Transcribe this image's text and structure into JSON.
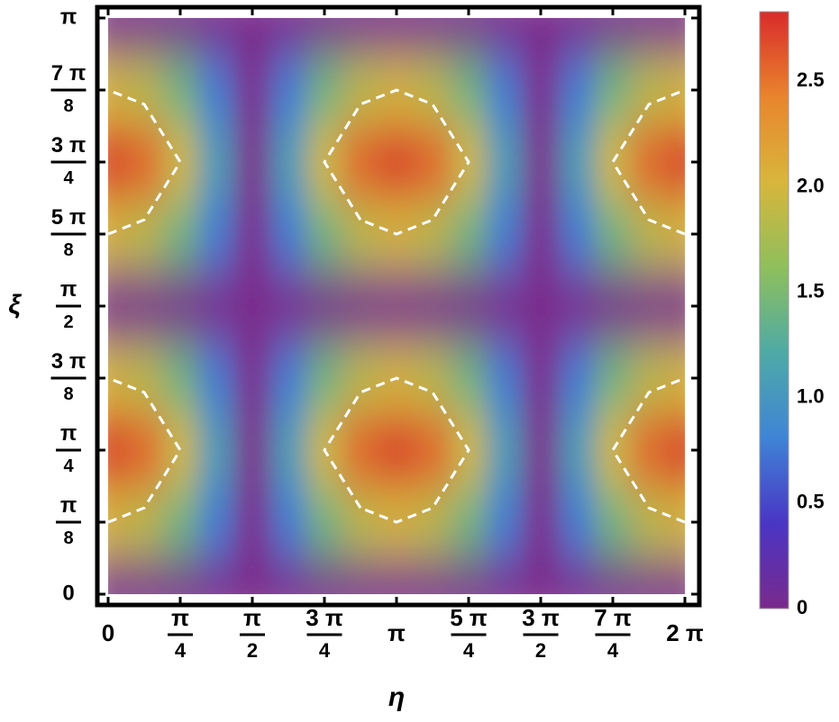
{
  "chart_data": {
    "type": "heatmap",
    "xlabel": "η",
    "ylabel": "ξ",
    "x": [
      0,
      0.3927,
      0.7854,
      1.1781,
      1.5708,
      1.9635,
      2.3562,
      2.7489,
      3.1416,
      3.5343,
      3.927,
      4.3197,
      4.7124,
      5.1051,
      5.4978,
      5.8905,
      6.2832
    ],
    "y": [
      0,
      0.3927,
      0.7854,
      1.1781,
      1.5708,
      1.9635,
      2.3562,
      2.7489,
      3.1416
    ],
    "z": [
      [
        0,
        0,
        0,
        0,
        0,
        0,
        0,
        0,
        0,
        0,
        0,
        0,
        0,
        0,
        0,
        0,
        0
      ],
      [
        2.0,
        1.85,
        1.41,
        0.77,
        0,
        0.77,
        1.41,
        1.85,
        2.0,
        1.85,
        1.41,
        0.77,
        0,
        0.77,
        1.41,
        1.85,
        2.0
      ],
      [
        2.83,
        2.61,
        2.0,
        1.08,
        0,
        1.08,
        2.0,
        2.61,
        2.83,
        2.61,
        2.0,
        1.08,
        0,
        1.08,
        2.0,
        2.61,
        2.83
      ],
      [
        2.0,
        1.85,
        1.41,
        0.77,
        0,
        0.77,
        1.41,
        1.85,
        2.0,
        1.85,
        1.41,
        0.77,
        0,
        0.77,
        1.41,
        1.85,
        2.0
      ],
      [
        0,
        0,
        0,
        0,
        0,
        0,
        0,
        0,
        0,
        0,
        0,
        0,
        0,
        0,
        0,
        0,
        0
      ],
      [
        2.0,
        1.85,
        1.41,
        0.77,
        0,
        0.77,
        1.41,
        1.85,
        2.0,
        1.85,
        1.41,
        0.77,
        0,
        0.77,
        1.41,
        1.85,
        2.0
      ],
      [
        2.83,
        2.61,
        2.0,
        1.08,
        0,
        1.08,
        2.0,
        2.61,
        2.83,
        2.61,
        2.0,
        1.08,
        0,
        1.08,
        2.0,
        2.61,
        2.83
      ],
      [
        2.0,
        1.85,
        1.41,
        0.77,
        0,
        0.77,
        1.41,
        1.85,
        2.0,
        1.85,
        1.41,
        0.77,
        0,
        0.77,
        1.41,
        1.85,
        2.0
      ],
      [
        0,
        0,
        0,
        0,
        0,
        0,
        0,
        0,
        0,
        0,
        0,
        0,
        0,
        0,
        0,
        0,
        0
      ]
    ],
    "xlim": [
      0,
      6.2832
    ],
    "ylim": [
      0,
      3.1416
    ],
    "xticks": [
      {
        "value": 0,
        "label": "0"
      },
      {
        "value": 0.7854,
        "label": "π/4"
      },
      {
        "value": 1.5708,
        "label": "π/2"
      },
      {
        "value": 2.3562,
        "label": "3 π/4"
      },
      {
        "value": 3.1416,
        "label": "π"
      },
      {
        "value": 3.927,
        "label": "5 π/4"
      },
      {
        "value": 4.7124,
        "label": "3 π/2"
      },
      {
        "value": 5.4978,
        "label": "7 π/4"
      },
      {
        "value": 6.2832,
        "label": "2 π"
      }
    ],
    "yticks": [
      {
        "value": 0,
        "label": "0"
      },
      {
        "value": 0.3927,
        "label": "π/8"
      },
      {
        "value": 0.7854,
        "label": "π/4"
      },
      {
        "value": 1.1781,
        "label": "3 π/8"
      },
      {
        "value": 1.5708,
        "label": "π/2"
      },
      {
        "value": 1.9635,
        "label": "5 π/8"
      },
      {
        "value": 2.3562,
        "label": "3 π/4"
      },
      {
        "value": 2.7489,
        "label": "7 π/8"
      },
      {
        "value": 3.1416,
        "label": "π"
      }
    ],
    "colormap": [
      "#7a2a8c",
      "#4a35c4",
      "#3f84d6",
      "#4eaaa6",
      "#8fbf5c",
      "#d8b63c",
      "#e9852d",
      "#d92b2b"
    ],
    "clim": [
      0,
      2.83
    ],
    "colorbar_ticks": [
      0,
      0.5,
      {
        "value": 1,
        "label": "1.0"
      },
      1.5,
      {
        "value": 2,
        "label": "2.0"
      },
      2.5
    ],
    "contour": {
      "level": 2,
      "color": "#ffffff"
    }
  }
}
